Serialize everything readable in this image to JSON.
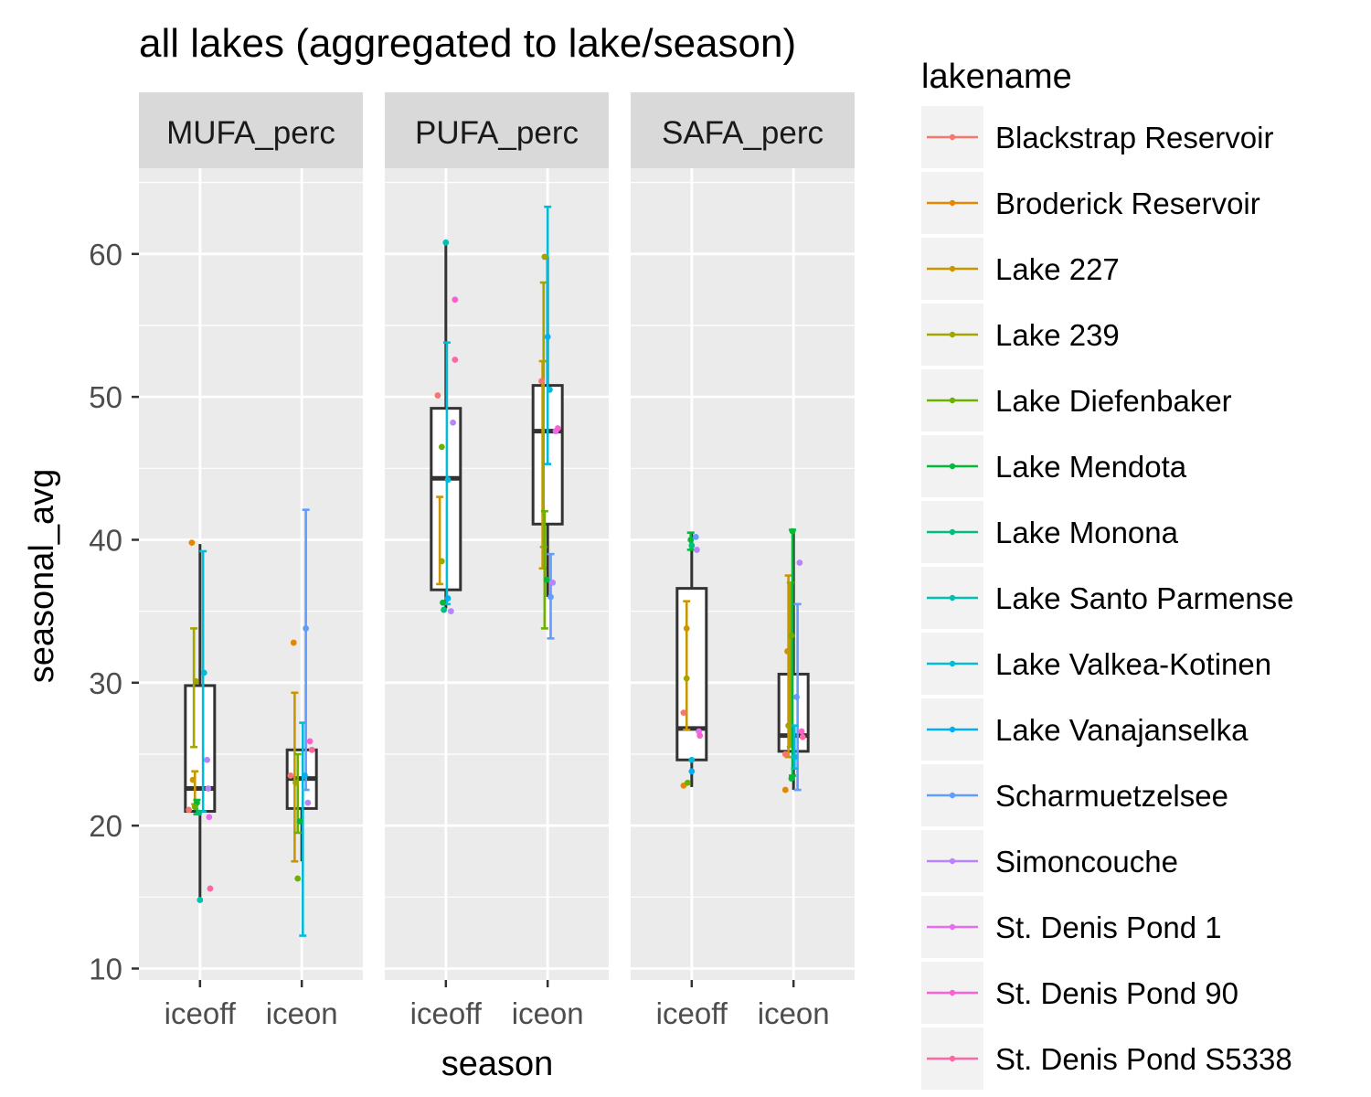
{
  "chart_data": {
    "type": "box",
    "title": "all lakes (aggregated to lake/season)",
    "xlabel": "season",
    "ylabel": "seasonal_avg",
    "ylim": [
      9.2,
      66
    ],
    "y_ticks": [
      10,
      20,
      30,
      40,
      50,
      60
    ],
    "grid": true,
    "legend_position": "right",
    "legend_title": "lakename",
    "categories": [
      "iceoff",
      "iceon"
    ],
    "panels": [
      {
        "name": "MUFA_perc",
        "boxes": [
          {
            "season": "iceoff",
            "q1": 21.0,
            "median": 22.6,
            "q3": 29.8,
            "whisker_low": 14.8,
            "whisker_high": 39.7
          },
          {
            "season": "iceon",
            "q1": 21.2,
            "median": 23.3,
            "q3": 25.3,
            "whisker_low": 17.5,
            "whisker_high": 25.3
          }
        ],
        "errorbars": [
          {
            "season": "iceoff",
            "lake": "Lake 227",
            "low": 21.5,
            "high": 23.8,
            "dx": -0.05
          },
          {
            "season": "iceoff",
            "lake": "Lake 239",
            "low": 25.5,
            "high": 33.8,
            "dx": -0.06
          },
          {
            "season": "iceoff",
            "lake": "Lake Mendota",
            "low": 20.8,
            "high": 21.8,
            "dx": -0.03
          },
          {
            "season": "iceoff",
            "lake": "Lake Valkea-Kotinen",
            "low": 21.0,
            "high": 39.2,
            "dx": 0.03
          },
          {
            "season": "iceon",
            "lake": "Lake 227",
            "low": 17.5,
            "high": 29.3,
            "dx": -0.07
          },
          {
            "season": "iceon",
            "lake": "Lake Diefenbaker",
            "low": 19.5,
            "high": 25.0,
            "dx": -0.04
          },
          {
            "season": "iceon",
            "lake": "Lake Valkea-Kotinen",
            "low": 12.3,
            "high": 27.2,
            "dx": 0.01
          },
          {
            "season": "iceon",
            "lake": "Scharmuetzelsee",
            "low": 22.5,
            "high": 42.1,
            "dx": 0.04
          }
        ],
        "points": [
          {
            "season": "iceoff",
            "lake": "Broderick Reservoir",
            "y": 39.8,
            "dx": -0.08
          },
          {
            "season": "iceoff",
            "lake": "Lake 239",
            "y": 30.1,
            "dx": -0.04
          },
          {
            "season": "iceoff",
            "lake": "Lake 227",
            "y": 23.2,
            "dx": -0.07
          },
          {
            "season": "iceoff",
            "lake": "Blackstrap Reservoir",
            "y": 21.1,
            "dx": -0.11
          },
          {
            "season": "iceoff",
            "lake": "Lake Mendota",
            "y": 21.6,
            "dx": -0.03
          },
          {
            "season": "iceoff",
            "lake": "Lake Monona",
            "y": 20.9,
            "dx": -0.01
          },
          {
            "season": "iceoff",
            "lake": "Lake Diefenbaker",
            "y": 21.3,
            "dx": -0.05
          },
          {
            "season": "iceoff",
            "lake": "Lake Valkea-Kotinen",
            "y": 30.7,
            "dx": 0.04
          },
          {
            "season": "iceoff",
            "lake": "Lake Santo Parmense",
            "y": 14.8,
            "dx": 0.0
          },
          {
            "season": "iceoff",
            "lake": "Simoncouche",
            "y": 24.6,
            "dx": 0.07
          },
          {
            "season": "iceoff",
            "lake": "Simoncouche",
            "y": 22.6,
            "dx": 0.08
          },
          {
            "season": "iceoff",
            "lake": "St. Denis Pond 1",
            "y": 20.6,
            "dx": 0.09
          },
          {
            "season": "iceoff",
            "lake": "St. Denis Pond S5338",
            "y": 15.6,
            "dx": 0.1
          },
          {
            "season": "iceon",
            "lake": "Broderick Reservoir",
            "y": 32.8,
            "dx": -0.08
          },
          {
            "season": "iceon",
            "lake": "Blackstrap Reservoir",
            "y": 23.5,
            "dx": -0.11
          },
          {
            "season": "iceon",
            "lake": "Lake 239",
            "y": 23.0,
            "dx": -0.06
          },
          {
            "season": "iceon",
            "lake": "Lake Diefenbaker",
            "y": 16.3,
            "dx": -0.04
          },
          {
            "season": "iceon",
            "lake": "Lake Mendota",
            "y": 20.3,
            "dx": -0.02
          },
          {
            "season": "iceon",
            "lake": "Scharmuetzelsee",
            "y": 33.8,
            "dx": 0.04
          },
          {
            "season": "iceon",
            "lake": "Lake Vanajanselka",
            "y": 23.5,
            "dx": 0.03
          },
          {
            "season": "iceon",
            "lake": "Simoncouche",
            "y": 21.6,
            "dx": 0.06
          },
          {
            "season": "iceon",
            "lake": "St. Denis Pond 90",
            "y": 25.9,
            "dx": 0.08
          },
          {
            "season": "iceon",
            "lake": "St. Denis Pond S5338",
            "y": 25.3,
            "dx": 0.1
          }
        ]
      },
      {
        "name": "PUFA_perc",
        "boxes": [
          {
            "season": "iceoff",
            "q1": 36.5,
            "median": 44.3,
            "q3": 49.2,
            "whisker_low": 35.2,
            "whisker_high": 60.8
          },
          {
            "season": "iceon",
            "q1": 41.1,
            "median": 47.6,
            "q3": 50.8,
            "whisker_low": 36.0,
            "whisker_high": 59.8
          }
        ],
        "errorbars": [
          {
            "season": "iceoff",
            "lake": "Lake 227",
            "low": 36.9,
            "high": 43.0,
            "dx": -0.06
          },
          {
            "season": "iceoff",
            "lake": "Lake Valkea-Kotinen",
            "low": 35.5,
            "high": 53.8,
            "dx": 0.01
          },
          {
            "season": "iceon",
            "lake": "Lake 227",
            "low": 38.0,
            "high": 52.5,
            "dx": -0.05
          },
          {
            "season": "iceon",
            "lake": "Lake 239",
            "low": 39.5,
            "high": 58.0,
            "dx": -0.04
          },
          {
            "season": "iceon",
            "lake": "Lake Diefenbaker",
            "low": 33.8,
            "high": 42.0,
            "dx": -0.03
          },
          {
            "season": "iceon",
            "lake": "Lake Valkea-Kotinen",
            "low": 45.3,
            "high": 63.3,
            "dx": 0.0
          },
          {
            "season": "iceon",
            "lake": "Scharmuetzelsee",
            "low": 33.1,
            "high": 39.0,
            "dx": 0.03
          }
        ],
        "points": [
          {
            "season": "iceoff",
            "lake": "Lake Santo Parmense",
            "y": 60.8,
            "dx": 0.0
          },
          {
            "season": "iceoff",
            "lake": "St. Denis Pond 90",
            "y": 56.8,
            "dx": 0.09
          },
          {
            "season": "iceoff",
            "lake": "St. Denis Pond S5338",
            "y": 52.6,
            "dx": 0.09
          },
          {
            "season": "iceoff",
            "lake": "Blackstrap Reservoir",
            "y": 50.1,
            "dx": -0.08
          },
          {
            "season": "iceoff",
            "lake": "Simoncouche",
            "y": 48.2,
            "dx": 0.07
          },
          {
            "season": "iceoff",
            "lake": "Lake Diefenbaker",
            "y": 46.5,
            "dx": -0.04
          },
          {
            "season": "iceoff",
            "lake": "Lake Valkea-Kotinen",
            "y": 44.2,
            "dx": 0.02
          },
          {
            "season": "iceoff",
            "lake": "Lake 239",
            "y": 38.5,
            "dx": -0.04
          },
          {
            "season": "iceoff",
            "lake": "Lake Mendota",
            "y": 35.6,
            "dx": -0.03
          },
          {
            "season": "iceoff",
            "lake": "Lake Monona",
            "y": 35.1,
            "dx": -0.02
          },
          {
            "season": "iceoff",
            "lake": "Lake Vanajanselka",
            "y": 35.9,
            "dx": 0.02
          },
          {
            "season": "iceoff",
            "lake": "Simoncouche",
            "y": 35.0,
            "dx": 0.05
          },
          {
            "season": "iceon",
            "lake": "Lake 239",
            "y": 59.8,
            "dx": -0.03
          },
          {
            "season": "iceon",
            "lake": "Lake Vanajanselka",
            "y": 54.2,
            "dx": 0.0
          },
          {
            "season": "iceon",
            "lake": "Blackstrap Reservoir",
            "y": 51.1,
            "dx": -0.06
          },
          {
            "season": "iceon",
            "lake": "Lake Valkea-Kotinen",
            "y": 50.5,
            "dx": 0.02
          },
          {
            "season": "iceon",
            "lake": "St. Denis Pond 1",
            "y": 47.6,
            "dx": 0.08
          },
          {
            "season": "iceon",
            "lake": "St. Denis Pond 90",
            "y": 47.8,
            "dx": 0.1
          },
          {
            "season": "iceon",
            "lake": "Lake Mendota",
            "y": 37.2,
            "dx": -0.01
          },
          {
            "season": "iceon",
            "lake": "Simoncouche",
            "y": 37.0,
            "dx": 0.05
          },
          {
            "season": "iceon",
            "lake": "Scharmuetzelsee",
            "y": 36.0,
            "dx": 0.03
          }
        ]
      },
      {
        "name": "SAFA_perc",
        "boxes": [
          {
            "season": "iceoff",
            "q1": 24.6,
            "median": 26.8,
            "q3": 36.6,
            "whisker_low": 22.7,
            "whisker_high": 40.5
          },
          {
            "season": "iceon",
            "q1": 25.2,
            "median": 26.3,
            "q3": 30.6,
            "whisker_low": 22.5,
            "whisker_high": 40.7
          }
        ],
        "errorbars": [
          {
            "season": "iceoff",
            "lake": "Lake 227",
            "low": 26.7,
            "high": 35.7,
            "dx": -0.05
          },
          {
            "season": "iceoff",
            "lake": "Lake Mendota",
            "low": 39.3,
            "high": 40.5,
            "dx": -0.01
          },
          {
            "season": "iceon",
            "lake": "Lake 227",
            "low": 24.8,
            "high": 37.5,
            "dx": -0.05
          },
          {
            "season": "iceon",
            "lake": "Lake 239",
            "low": 25.5,
            "high": 37.0,
            "dx": -0.03
          },
          {
            "season": "iceon",
            "lake": "Lake Mendota",
            "low": 23.5,
            "high": 40.7,
            "dx": -0.01
          },
          {
            "season": "iceon",
            "lake": "Scharmuetzelsee",
            "low": 22.5,
            "high": 35.5,
            "dx": 0.04
          },
          {
            "season": "iceon",
            "lake": "Lake Valkea-Kotinen",
            "low": 24.0,
            "high": 27.0,
            "dx": 0.01
          }
        ],
        "points": [
          {
            "season": "iceoff",
            "lake": "Lake Mendota",
            "y": 40.0,
            "dx": -0.01
          },
          {
            "season": "iceoff",
            "lake": "Lake Monona",
            "y": 39.6,
            "dx": 0.0
          },
          {
            "season": "iceoff",
            "lake": "Scharmuetzelsee",
            "y": 40.2,
            "dx": 0.04
          },
          {
            "season": "iceoff",
            "lake": "Simoncouche",
            "y": 39.3,
            "dx": 0.05
          },
          {
            "season": "iceoff",
            "lake": "Lake 227",
            "y": 33.8,
            "dx": -0.05
          },
          {
            "season": "iceoff",
            "lake": "Lake 239",
            "y": 30.3,
            "dx": -0.05
          },
          {
            "season": "iceoff",
            "lake": "Blackstrap Reservoir",
            "y": 27.9,
            "dx": -0.08
          },
          {
            "season": "iceoff",
            "lake": "St. Denis Pond 1",
            "y": 26.6,
            "dx": 0.07
          },
          {
            "season": "iceoff",
            "lake": "St. Denis Pond 90",
            "y": 26.3,
            "dx": 0.08
          },
          {
            "season": "iceoff",
            "lake": "Lake Valkea-Kotinen",
            "y": 24.6,
            "dx": 0.0
          },
          {
            "season": "iceoff",
            "lake": "Lake Vanajanselka",
            "y": 23.8,
            "dx": 0.0
          },
          {
            "season": "iceoff",
            "lake": "Broderick Reservoir",
            "y": 22.8,
            "dx": -0.08
          },
          {
            "season": "iceoff",
            "lake": "Lake Diefenbaker",
            "y": 23.0,
            "dx": -0.04
          },
          {
            "season": "iceon",
            "lake": "Lake Mendota",
            "y": 40.6,
            "dx": -0.01
          },
          {
            "season": "iceon",
            "lake": "Simoncouche",
            "y": 38.4,
            "dx": 0.06
          },
          {
            "season": "iceon",
            "lake": "Lake Diefenbaker",
            "y": 33.3,
            "dx": -0.02
          },
          {
            "season": "iceon",
            "lake": "Lake 227",
            "y": 32.2,
            "dx": -0.06
          },
          {
            "season": "iceon",
            "lake": "Scharmuetzelsee",
            "y": 29.0,
            "dx": 0.03
          },
          {
            "season": "iceon",
            "lake": "Lake 239",
            "y": 27.0,
            "dx": -0.05
          },
          {
            "season": "iceon",
            "lake": "St. Denis Pond 90",
            "y": 26.6,
            "dx": 0.08
          },
          {
            "season": "iceon",
            "lake": "St. Denis Pond S5338",
            "y": 26.2,
            "dx": 0.09
          },
          {
            "season": "iceon",
            "lake": "Blackstrap Reservoir",
            "y": 25.0,
            "dx": -0.08
          },
          {
            "season": "iceon",
            "lake": "Broderick Reservoir",
            "y": 22.5,
            "dx": -0.08
          },
          {
            "season": "iceon",
            "lake": "Lake Mendota",
            "y": 23.3,
            "dx": -0.02
          },
          {
            "season": "iceon",
            "lake": "Lake Valkea-Kotinen",
            "y": 24.8,
            "dx": 0.01
          }
        ]
      }
    ],
    "legend": [
      {
        "name": "Blackstrap Reservoir",
        "color": "#F8766D"
      },
      {
        "name": "Broderick Reservoir",
        "color": "#E58700"
      },
      {
        "name": "Lake 227",
        "color": "#C99800"
      },
      {
        "name": "Lake 239",
        "color": "#A3A500"
      },
      {
        "name": "Lake Diefenbaker",
        "color": "#6BB100"
      },
      {
        "name": "Lake Mendota",
        "color": "#00BA38"
      },
      {
        "name": "Lake Monona",
        "color": "#00BF7D"
      },
      {
        "name": "Lake Santo Parmense",
        "color": "#00C0AF"
      },
      {
        "name": "Lake Valkea-Kotinen",
        "color": "#00BCD8"
      },
      {
        "name": "Lake Vanajanselka",
        "color": "#00B0F6"
      },
      {
        "name": "Scharmuetzelsee",
        "color": "#619CFF"
      },
      {
        "name": "Simoncouche",
        "color": "#B983FF"
      },
      {
        "name": "St. Denis Pond 1",
        "color": "#E76BF3"
      },
      {
        "name": "St. Denis Pond 90",
        "color": "#FD61D1"
      },
      {
        "name": "St. Denis Pond S5338",
        "color": "#FF67A4"
      }
    ]
  },
  "colors": {
    "panel_background": "#EBEBEB",
    "strip_background": "#D9D9D9",
    "grid": "#FFFFFF",
    "box_outline": "#333333",
    "axis_text": "#4D4D4D",
    "legend_key": "#F2F2F2"
  }
}
